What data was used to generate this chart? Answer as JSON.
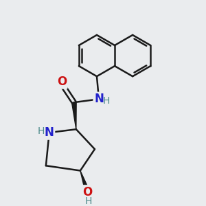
{
  "background_color": "#eaecee",
  "line_color": "#1a1a1a",
  "bond_width": 1.8,
  "N_color": "#2222cc",
  "O_color": "#cc1111",
  "H_color": "#4a8888",
  "fig_width": 3.0,
  "fig_height": 3.0,
  "xlim": [
    0.2,
    3.8
  ],
  "ylim": [
    0.0,
    4.5
  ]
}
